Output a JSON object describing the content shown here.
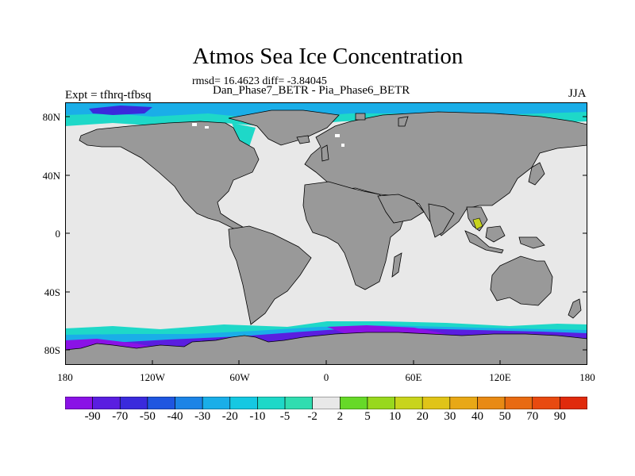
{
  "title": "Atmos Sea Ice Concentration",
  "subtitle": "rmsd= 16.4623 diff= -3.84045",
  "left_label": "Expt = tfhrq-tfbsq",
  "center_label": "Dan_Phase7_BETR - Pia_Phase6_BETR",
  "right_label": "JJA",
  "lat_labels": [
    "80N",
    "40N",
    "0",
    "40S",
    "80S"
  ],
  "lon_labels": [
    "180",
    "120W",
    "60W",
    "0",
    "60E",
    "120E",
    "180"
  ],
  "colorbar": {
    "labels": [
      "-90",
      "-70",
      "-50",
      "-40",
      "-30",
      "-20",
      "-10",
      "-5",
      "-2",
      "2",
      "5",
      "10",
      "20",
      "30",
      "40",
      "50",
      "70",
      "90"
    ],
    "colors": [
      "#8a12e6",
      "#5a1ee0",
      "#3a2adc",
      "#1f56e0",
      "#1c84e6",
      "#1aaee8",
      "#15c8e2",
      "#1ed8c8",
      "#30ddb0",
      "#e8e8e8",
      "#66d928",
      "#98d81e",
      "#c8d41c",
      "#e0c418",
      "#e8a816",
      "#e88a14",
      "#e86a12",
      "#e84a10",
      "#e02a0c"
    ]
  },
  "colors": {
    "land": "#999999",
    "ocean_nodiff": "#e8e8e8",
    "coast": "#000000"
  }
}
